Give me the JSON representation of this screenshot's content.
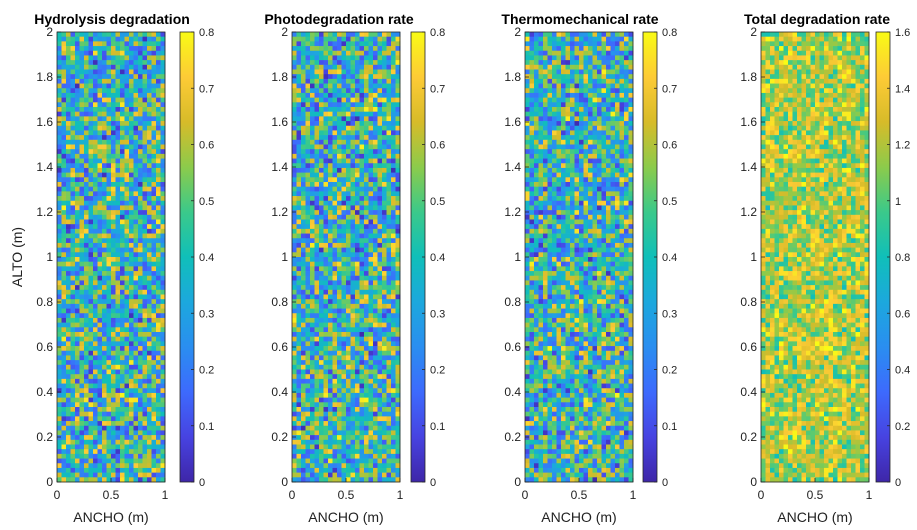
{
  "chart_data": [
    {
      "type": "heatmap",
      "title": "Hydrolysis degradation",
      "xlabel": "ANCHO (m)",
      "ylabel": "ALTO (m)",
      "xlim": [
        0,
        1
      ],
      "ylim": [
        0,
        2
      ],
      "xticks": [
        "0",
        "0.5",
        "1"
      ],
      "yticks": [
        "0",
        "0.2",
        "0.4",
        "0.6",
        "0.8",
        "1",
        "1.2",
        "1.4",
        "1.6",
        "1.8",
        "2"
      ],
      "clim": [
        0,
        0.8
      ],
      "cticks": [
        "0",
        "0.1",
        "0.2",
        "0.3",
        "0.4",
        "0.5",
        "0.6",
        "0.7",
        "0.8"
      ],
      "colormap": "parula",
      "grid": [
        24,
        96
      ],
      "mean": 0.4,
      "spread": 0.4,
      "seed": 11
    },
    {
      "type": "heatmap",
      "title": "Photodegradation rate",
      "xlabel": "ANCHO (m)",
      "ylabel": "",
      "xlim": [
        0,
        1
      ],
      "ylim": [
        0,
        2
      ],
      "xticks": [
        "0",
        "0.5",
        "1"
      ],
      "yticks": [
        "0",
        "0.2",
        "0.4",
        "0.6",
        "0.8",
        "1",
        "1.2",
        "1.4",
        "1.6",
        "1.8",
        "2"
      ],
      "clim": [
        0,
        0.8
      ],
      "cticks": [
        "0",
        "0.1",
        "0.2",
        "0.3",
        "0.4",
        "0.5",
        "0.6",
        "0.7",
        "0.8"
      ],
      "colormap": "parula",
      "grid": [
        24,
        96
      ],
      "mean": 0.4,
      "spread": 0.4,
      "seed": 23
    },
    {
      "type": "heatmap",
      "title": "Thermomechanical rate",
      "xlabel": "ANCHO (m)",
      "ylabel": "",
      "xlim": [
        0,
        1
      ],
      "ylim": [
        0,
        2
      ],
      "xticks": [
        "0",
        "0.5",
        "1"
      ],
      "yticks": [
        "0",
        "0.2",
        "0.4",
        "0.6",
        "0.8",
        "1",
        "1.2",
        "1.4",
        "1.6",
        "1.8",
        "2"
      ],
      "clim": [
        0,
        0.8
      ],
      "cticks": [
        "0",
        "0.1",
        "0.2",
        "0.3",
        "0.4",
        "0.5",
        "0.6",
        "0.7",
        "0.8"
      ],
      "colormap": "parula",
      "grid": [
        24,
        96
      ],
      "mean": 0.4,
      "spread": 0.4,
      "seed": 37
    },
    {
      "type": "heatmap",
      "title": "Total degradation rate",
      "xlabel": "ANCHO (m)",
      "ylabel": "",
      "xlim": [
        0,
        1
      ],
      "ylim": [
        0,
        2
      ],
      "xticks": [
        "0",
        "0.5",
        "1"
      ],
      "yticks": [
        "0",
        "0.2",
        "0.4",
        "0.6",
        "0.8",
        "1",
        "1.2",
        "1.4",
        "1.6",
        "1.8",
        "2"
      ],
      "clim": [
        0,
        1.6
      ],
      "cticks": [
        "0",
        "0.2",
        "0.4",
        "0.6",
        "0.8",
        "1",
        "1.2",
        "1.4",
        "1.6"
      ],
      "colormap": "parula",
      "grid": [
        24,
        96
      ],
      "mean": 1.2,
      "spread": 0.45,
      "seed": 53
    }
  ]
}
